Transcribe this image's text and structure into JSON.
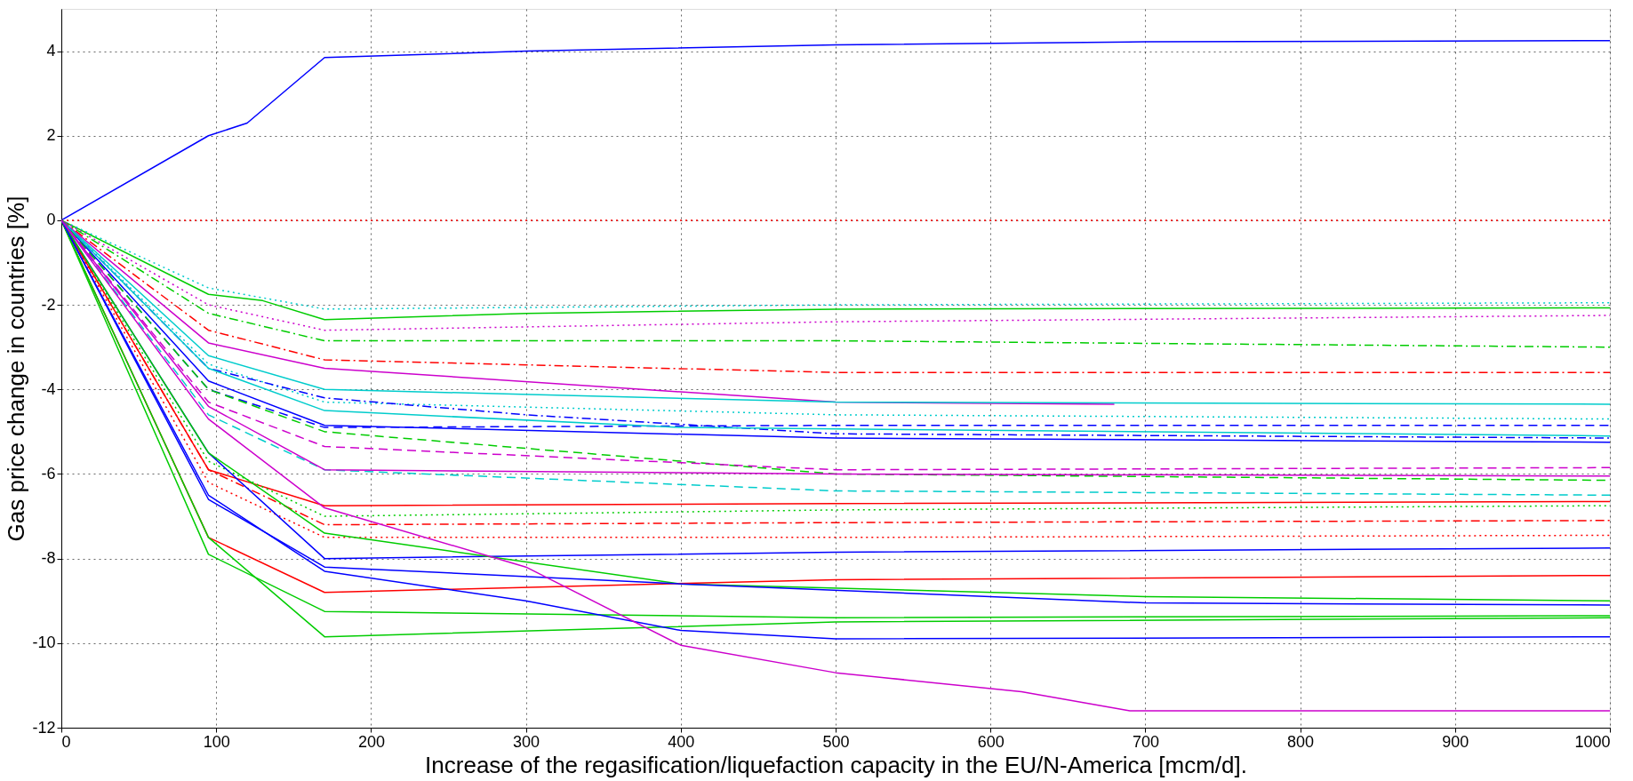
{
  "chart_data": {
    "type": "line",
    "xlabel": "Increase of the regasification/liquefaction capacity in the EU/N-America [mcm/d].",
    "ylabel": "Gas price change in countries [%]",
    "xlim": [
      0,
      1000
    ],
    "xticks": [
      0,
      100,
      200,
      300,
      400,
      500,
      600,
      700,
      800,
      900,
      1000
    ],
    "ylim": [
      -12,
      5
    ],
    "yticks": [
      -12,
      -10,
      -8,
      -6,
      -4,
      -2,
      0,
      2,
      4
    ],
    "grid": true,
    "series": [
      {
        "color": "#0000ff",
        "line_style": "solid",
        "x": [
          0,
          95,
          120,
          170,
          300,
          500,
          700,
          1000
        ],
        "values": [
          0,
          2.0,
          2.3,
          3.85,
          4.0,
          4.15,
          4.22,
          4.25
        ]
      },
      {
        "color": "#ff0000",
        "line_style": "dotted",
        "x": [
          0,
          1000
        ],
        "values": [
          0,
          0
        ]
      },
      {
        "color": "#00cc00",
        "line_style": "solid",
        "x": [
          0,
          95,
          130,
          170,
          300,
          500,
          1000
        ],
        "values": [
          0,
          -1.75,
          -1.9,
          -2.35,
          -2.2,
          -2.1,
          -2.07
        ]
      },
      {
        "color": "#00cccc",
        "line_style": "dotted",
        "x": [
          0,
          95,
          170,
          500,
          1000
        ],
        "values": [
          0,
          -1.6,
          -2.1,
          -2.0,
          -1.95
        ]
      },
      {
        "color": "#cc00cc",
        "line_style": "dotted",
        "x": [
          0,
          95,
          170,
          500,
          1000
        ],
        "values": [
          0,
          -2.0,
          -2.6,
          -2.4,
          -2.25
        ]
      },
      {
        "color": "#00cc00",
        "line_style": "dashdot",
        "x": [
          0,
          95,
          170,
          500,
          1000
        ],
        "values": [
          0,
          -2.2,
          -2.85,
          -2.85,
          -3.0
        ]
      },
      {
        "color": "#ff0000",
        "line_style": "dashdot",
        "x": [
          0,
          95,
          170,
          500,
          1000
        ],
        "values": [
          0,
          -2.6,
          -3.3,
          -3.6,
          -3.6
        ]
      },
      {
        "color": "#cc00cc",
        "line_style": "solid",
        "x": [
          0,
          95,
          170,
          500,
          680
        ],
        "values": [
          0,
          -2.9,
          -3.5,
          -4.3,
          -4.35
        ]
      },
      {
        "color": "#00cccc",
        "line_style": "solid",
        "x": [
          0,
          95,
          170,
          500,
          1000
        ],
        "values": [
          0,
          -3.2,
          -4.0,
          -4.3,
          -4.35
        ]
      },
      {
        "color": "#00cccc",
        "line_style": "dotted",
        "x": [
          0,
          95,
          170,
          500,
          1000
        ],
        "values": [
          0,
          -3.4,
          -4.3,
          -4.6,
          -4.7
        ]
      },
      {
        "color": "#0000ff",
        "line_style": "dashdot",
        "x": [
          0,
          95,
          170,
          300,
          500,
          1000
        ],
        "values": [
          0,
          -3.5,
          -4.2,
          -4.6,
          -5.05,
          -5.15
        ]
      },
      {
        "color": "#0000ff",
        "line_style": "dashed",
        "x": [
          0,
          95,
          170,
          500,
          1000
        ],
        "values": [
          0,
          -4.0,
          -4.9,
          -4.85,
          -4.85
        ]
      },
      {
        "color": "#0000ff",
        "line_style": "solid",
        "x": [
          0,
          95,
          170,
          500,
          1000
        ],
        "values": [
          0,
          -3.8,
          -4.85,
          -5.15,
          -5.25
        ]
      },
      {
        "color": "#00cccc",
        "line_style": "solid",
        "x": [
          0,
          95,
          170,
          400,
          1000
        ],
        "values": [
          0,
          -3.5,
          -4.5,
          -4.9,
          -5.1
        ]
      },
      {
        "color": "#00cc00",
        "line_style": "dashed",
        "x": [
          0,
          95,
          170,
          500,
          1000
        ],
        "values": [
          0,
          -4.0,
          -5.0,
          -6.0,
          -6.15
        ]
      },
      {
        "color": "#cc00cc",
        "line_style": "dashed",
        "x": [
          0,
          95,
          170,
          500,
          1000
        ],
        "values": [
          0,
          -4.3,
          -5.35,
          -5.9,
          -5.85
        ]
      },
      {
        "color": "#00cccc",
        "line_style": "dashed",
        "x": [
          0,
          95,
          170,
          500,
          1000
        ],
        "values": [
          0,
          -4.6,
          -5.9,
          -6.4,
          -6.5
        ]
      },
      {
        "color": "#cc00cc",
        "line_style": "solid",
        "x": [
          0,
          95,
          170,
          500,
          1000
        ],
        "values": [
          0,
          -4.4,
          -5.9,
          -6.0,
          -6.05
        ]
      },
      {
        "color": "#ff0000",
        "line_style": "solid",
        "x": [
          0,
          95,
          170,
          500,
          1000
        ],
        "values": [
          0,
          -5.9,
          -6.75,
          -6.7,
          -6.65
        ]
      },
      {
        "color": "#00cc00",
        "line_style": "dotted",
        "x": [
          0,
          95,
          170,
          500,
          1000
        ],
        "values": [
          0,
          -5.7,
          -7.0,
          -6.85,
          -6.75
        ]
      },
      {
        "color": "#ff0000",
        "line_style": "dashdot",
        "x": [
          0,
          95,
          170,
          500,
          1000
        ],
        "values": [
          0,
          -5.9,
          -7.2,
          -7.15,
          -7.1
        ]
      },
      {
        "color": "#ff0000",
        "line_style": "dotted",
        "x": [
          0,
          95,
          170,
          500,
          1000
        ],
        "values": [
          0,
          -6.2,
          -7.5,
          -7.5,
          -7.45
        ]
      },
      {
        "color": "#0000ff",
        "line_style": "solid",
        "x": [
          0,
          95,
          170,
          500,
          1000
        ],
        "values": [
          0,
          -5.5,
          -8.0,
          -7.85,
          -7.75
        ]
      },
      {
        "color": "#00cc00",
        "line_style": "solid",
        "x": [
          0,
          95,
          170,
          400,
          700,
          1000
        ],
        "values": [
          0,
          -5.5,
          -7.4,
          -8.6,
          -8.9,
          -9.0
        ]
      },
      {
        "color": "#ff0000",
        "line_style": "solid",
        "x": [
          0,
          95,
          170,
          500,
          1000
        ],
        "values": [
          0,
          -7.5,
          -8.8,
          -8.5,
          -8.4
        ]
      },
      {
        "color": "#0000ff",
        "line_style": "solid",
        "x": [
          0,
          95,
          170,
          400,
          700,
          1000
        ],
        "values": [
          0,
          -6.6,
          -8.2,
          -8.6,
          -9.05,
          -9.1
        ]
      },
      {
        "color": "#00cc00",
        "line_style": "solid",
        "x": [
          0,
          95,
          170,
          500,
          1000
        ],
        "values": [
          0,
          -7.9,
          -9.25,
          -9.4,
          -9.35
        ]
      },
      {
        "color": "#00cc00",
        "line_style": "solid",
        "x": [
          0,
          95,
          170,
          500,
          1000
        ],
        "values": [
          0,
          -7.5,
          -9.85,
          -9.5,
          -9.4
        ]
      },
      {
        "color": "#0000ff",
        "line_style": "solid",
        "x": [
          0,
          95,
          170,
          300,
          400,
          500,
          1000
        ],
        "values": [
          0,
          -6.5,
          -8.3,
          -9.0,
          -9.7,
          -9.9,
          -9.85
        ]
      },
      {
        "color": "#cc00cc",
        "line_style": "solid",
        "x": [
          0,
          95,
          170,
          300,
          400,
          500,
          620,
          690,
          1000
        ],
        "values": [
          0,
          -4.7,
          -6.8,
          -8.2,
          -10.05,
          -10.7,
          -11.15,
          -11.6,
          -11.6
        ]
      }
    ]
  }
}
